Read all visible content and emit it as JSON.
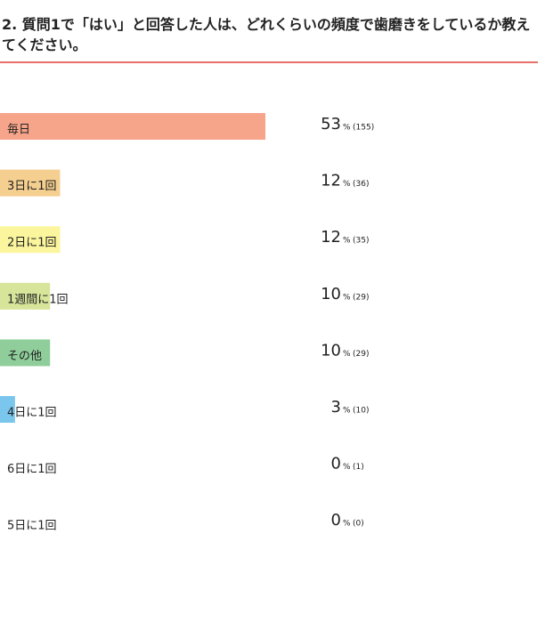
{
  "chart_data": {
    "type": "bar",
    "title": "2. 質問1で「はい」と回答した人は、どれくらいの頻度で歯磨きをしているか教えてください。",
    "categories": [
      "毎日",
      "3日に1回",
      "2日に1回",
      "1週間に1回",
      "その他",
      "4日に1回",
      "6日に1回",
      "5日に1回"
    ],
    "values": [
      53,
      12,
      12,
      10,
      10,
      3,
      0,
      0
    ],
    "unit": "%",
    "count_labels": [
      "(155)",
      "(36)",
      "(35)",
      "(29)",
      "(29)",
      "(10)",
      "(1)",
      "(0)"
    ],
    "colors": [
      "#f7a58a",
      "#f5cf8f",
      "#fbf59d",
      "#d6e59a",
      "#8fce9a",
      "#7ac6ec",
      "#7ac6ec",
      "#7ac6ec"
    ]
  }
}
